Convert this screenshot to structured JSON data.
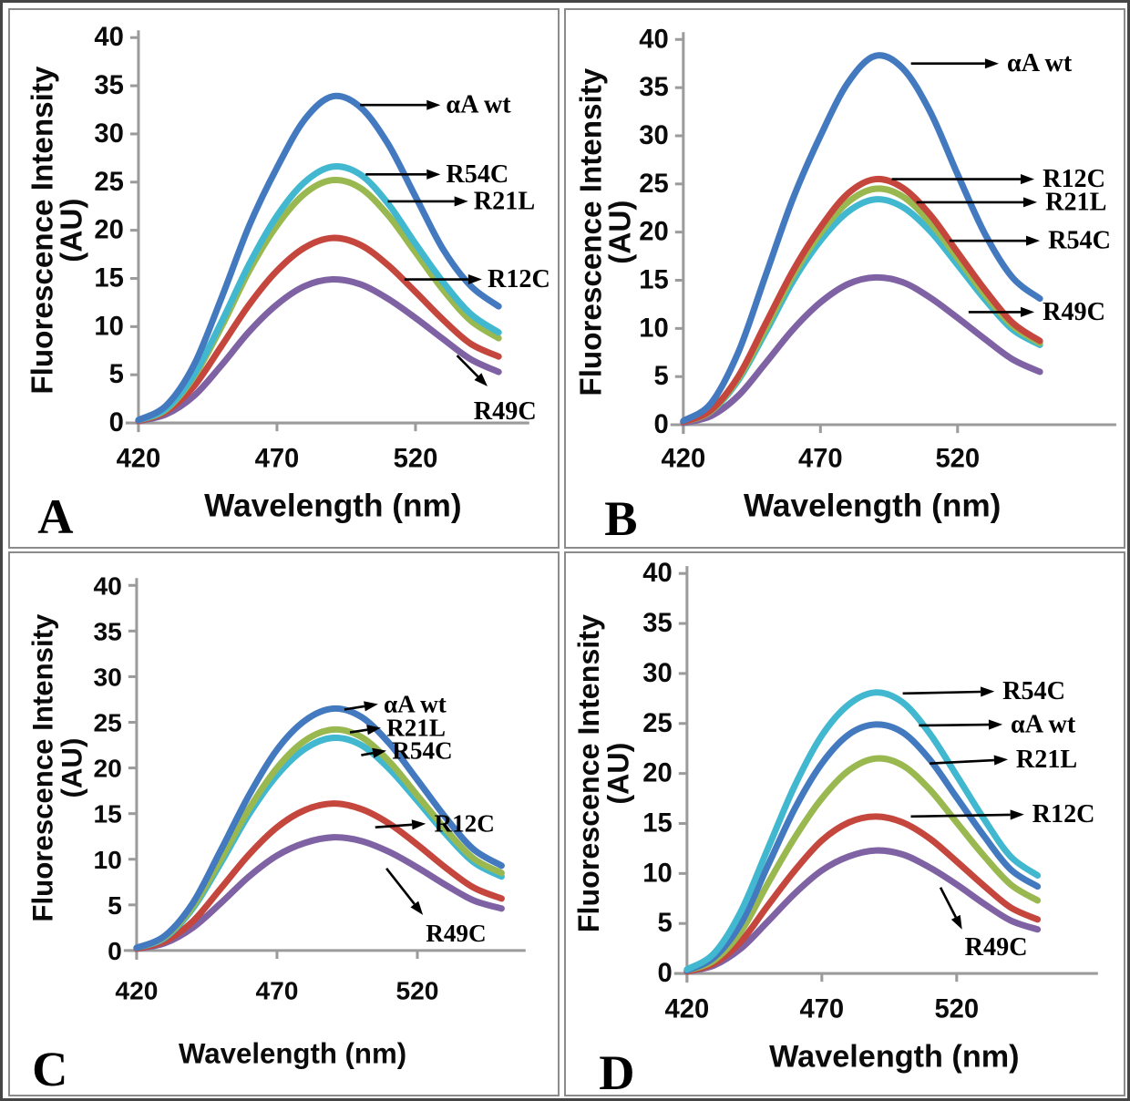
{
  "figure": {
    "description": "Four-panel fluorescence spectra figure comparing alphaA-crystallin wild type and mutants",
    "panel_letters": [
      "A",
      "B",
      "C",
      "D"
    ],
    "colors": {
      "aA_wt": "#4379bf",
      "R54C": "#41b8cf",
      "R21L": "#99b950",
      "R12C": "#c5463d",
      "R49C": "#7e62a4",
      "axis": "#9b9b9b",
      "arrow": "#000000",
      "panel_border": "#8b8b8b",
      "outer_frame": "#454545"
    }
  },
  "chart_data": {
    "type": "line",
    "xlabel": "Wavelength (nm)",
    "ylabel_line1": "Fluorescence Intensity",
    "ylabel_line2": "(AU)",
    "x_ticks": [
      420,
      470,
      520
    ],
    "y_ticks": [
      0,
      5,
      10,
      15,
      20,
      25,
      30,
      35,
      40
    ],
    "xlim": [
      415,
      560
    ],
    "ylim": [
      0,
      40
    ],
    "grid": false,
    "legend": "arrow-annotations",
    "x_nm": [
      420,
      430,
      440,
      450,
      460,
      470,
      480,
      490,
      500,
      510,
      520,
      530,
      540,
      550
    ],
    "panels": [
      {
        "letter": "A",
        "series": [
          {
            "name": "R49C",
            "color": "R49C",
            "values": [
              0.2,
              0.9,
              2.8,
              6.0,
              9.5,
              12.3,
              14.2,
              14.9,
              14.4,
              12.9,
              10.9,
              8.7,
              6.6,
              5.3
            ]
          },
          {
            "name": "R12C",
            "color": "R12C",
            "values": [
              0.2,
              1.2,
              3.8,
              8.0,
              12.3,
              15.8,
              18.2,
              19.2,
              18.5,
              16.4,
              13.6,
              10.7,
              8.2,
              6.9
            ]
          },
          {
            "name": "R21L",
            "color": "R21L",
            "values": [
              0.3,
              1.4,
              4.8,
              10.0,
              15.8,
              20.5,
              23.8,
              25.2,
              24.4,
              21.6,
              17.7,
              13.8,
              10.6,
              8.8
            ]
          },
          {
            "name": "R54C",
            "color": "R54C",
            "values": [
              0.3,
              1.5,
              5.0,
              10.5,
              16.5,
              21.5,
              25.0,
              26.6,
              25.8,
              22.8,
              18.6,
              14.6,
              11.3,
              9.4
            ]
          },
          {
            "name": "αA wt",
            "color": "aA_wt",
            "values": [
              0.3,
              1.8,
              6.0,
              13.0,
              20.5,
              26.5,
              31.5,
              33.9,
              32.8,
              29.0,
              23.5,
              18.0,
              14.2,
              12.1
            ]
          }
        ],
        "annotations": [
          {
            "label": "αA wt",
            "arrow": [
              500,
              33.0,
              529,
              33.0
            ],
            "text": [
              531,
              33.0
            ]
          },
          {
            "label": "R54C",
            "arrow": [
              502,
              25.8,
              529,
              25.8
            ],
            "text": [
              531,
              25.8
            ]
          },
          {
            "label": "R21L",
            "arrow": [
              510,
              23.0,
              539,
              23.0
            ],
            "text": [
              541,
              23.0
            ]
          },
          {
            "label": "R12C",
            "arrow": [
              516,
              14.9,
              544,
              14.9
            ],
            "text": [
              546,
              14.9
            ]
          },
          {
            "label": "R49C",
            "arrow": [
              535,
              7.0,
              546,
              3.8
            ],
            "text": [
              541,
              1.2
            ]
          }
        ]
      },
      {
        "letter": "B",
        "series": [
          {
            "name": "R49C",
            "color": "R49C",
            "values": [
              0.2,
              0.9,
              3.0,
              6.4,
              9.9,
              12.7,
              14.6,
              15.3,
              14.8,
              13.2,
              11.1,
              8.9,
              6.8,
              5.5
            ]
          },
          {
            "name": "R54C",
            "color": "R54C",
            "values": [
              0.3,
              1.4,
              4.6,
              9.6,
              14.9,
              19.1,
              22.1,
              23.4,
              22.6,
              20.1,
              16.6,
              13.0,
              9.9,
              8.3
            ]
          },
          {
            "name": "R21L",
            "color": "R21L",
            "values": [
              0.3,
              1.4,
              4.8,
              10.0,
              15.5,
              19.9,
              23.1,
              24.5,
              23.7,
              21.0,
              17.3,
              13.5,
              10.3,
              8.5
            ]
          },
          {
            "name": "R12C",
            "color": "R12C",
            "values": [
              0.3,
              1.5,
              5.0,
              10.5,
              16.0,
              20.5,
              24.0,
              25.5,
              24.6,
              21.8,
              17.9,
              14.0,
              10.6,
              8.7
            ]
          },
          {
            "name": "αA wt",
            "color": "aA_wt",
            "values": [
              0.4,
              2.2,
              7.5,
              15.5,
              23.5,
              30.0,
              35.5,
              38.3,
              37.0,
              32.5,
              26.0,
              19.8,
              15.3,
              13.1
            ]
          }
        ],
        "annotations": [
          {
            "label": "αA wt",
            "arrow": [
              503,
              37.5,
              535,
              37.5
            ],
            "text": [
              538,
              37.5
            ]
          },
          {
            "label": "R12C",
            "arrow": [
              496,
              25.5,
              548,
              25.5
            ],
            "text": [
              551,
              25.5
            ]
          },
          {
            "label": "R21L",
            "arrow": [
              505,
              23.1,
              549,
              23.1
            ],
            "text": [
              552,
              23.1
            ]
          },
          {
            "label": "R54C",
            "arrow": [
              517,
              19.1,
              550,
              19.1
            ],
            "text": [
              553,
              19.1
            ]
          },
          {
            "label": "R49C",
            "arrow": [
              524,
              11.7,
              548,
              11.7
            ],
            "text": [
              551,
              11.7
            ]
          }
        ]
      },
      {
        "letter": "C",
        "series": [
          {
            "name": "R49C",
            "color": "R49C",
            "values": [
              0.2,
              0.8,
              2.5,
              5.2,
              8.1,
              10.4,
              11.8,
              12.4,
              12.0,
              10.8,
              9.1,
              7.2,
              5.5,
              4.6
            ]
          },
          {
            "name": "R12C",
            "color": "R12C",
            "values": [
              0.2,
              1.0,
              3.2,
              6.8,
              10.5,
              13.5,
              15.4,
              16.1,
              15.5,
              13.9,
              11.6,
              9.1,
              6.9,
              5.7
            ]
          },
          {
            "name": "R54C",
            "color": "R54C",
            "values": [
              0.3,
              1.4,
              4.6,
              9.6,
              14.9,
              19.2,
              22.1,
              23.3,
              22.5,
              19.9,
              16.4,
              12.8,
              9.7,
              8.1
            ]
          },
          {
            "name": "R21L",
            "color": "R21L",
            "values": [
              0.3,
              1.5,
              4.8,
              10.0,
              15.5,
              20.0,
              23.0,
              24.2,
              23.4,
              20.7,
              17.0,
              13.3,
              10.1,
              8.5
            ]
          },
          {
            "name": "αA wt",
            "color": "aA_wt",
            "values": [
              0.3,
              1.6,
              5.2,
              11.0,
              17.0,
              22.0,
              25.2,
              26.5,
              25.6,
              22.7,
              18.7,
              14.6,
              11.1,
              9.3
            ]
          }
        ],
        "annotations": [
          {
            "label": "αA wt",
            "arrow": [
              494,
              26.4,
              506,
              27.0
            ],
            "text": [
              508,
              27.0
            ]
          },
          {
            "label": "R21L",
            "arrow": [
              496,
              23.9,
              507,
              24.4
            ],
            "text": [
              509,
              24.4
            ]
          },
          {
            "label": "R54C",
            "arrow": [
              500,
              21.4,
              509,
              21.9
            ],
            "text": [
              511,
              21.9
            ]
          },
          {
            "label": "R12C",
            "arrow": [
              505,
              13.5,
              523,
              13.9
            ],
            "text": [
              526,
              13.9
            ]
          },
          {
            "label": "R49C",
            "arrow": [
              509,
              9.0,
              522,
              3.9
            ],
            "text": [
              523,
              1.9
            ]
          }
        ]
      },
      {
        "letter": "D",
        "series": [
          {
            "name": "R49C",
            "color": "R49C",
            "values": [
              0.2,
              0.8,
              2.5,
              5.2,
              8.0,
              10.3,
              11.7,
              12.3,
              11.9,
              10.6,
              8.9,
              7.0,
              5.3,
              4.4
            ]
          },
          {
            "name": "R12C",
            "color": "R12C",
            "values": [
              0.2,
              1.0,
              3.2,
              6.8,
              10.3,
              13.3,
              15.1,
              15.7,
              15.1,
              13.5,
              11.2,
              8.8,
              6.6,
              5.4
            ]
          },
          {
            "name": "R21L",
            "color": "R21L",
            "values": [
              0.3,
              1.3,
              4.2,
              9.0,
              13.6,
              17.5,
              20.3,
              21.5,
              20.8,
              18.4,
              15.1,
              11.8,
              8.9,
              7.3
            ]
          },
          {
            "name": "αA wt",
            "color": "aA_wt",
            "values": [
              0.3,
              1.6,
              5.0,
              10.8,
              16.5,
              21.0,
              23.9,
              24.9,
              24.1,
              21.4,
              17.6,
              13.8,
              10.4,
              8.7
            ]
          },
          {
            "name": "R54C",
            "color": "R54C",
            "values": [
              0.4,
              2.0,
              6.2,
              12.5,
              18.8,
              23.8,
              26.9,
              28.1,
              27.1,
              24.0,
              19.8,
              15.5,
              11.7,
              9.8
            ]
          }
        ],
        "annotations": [
          {
            "label": "R54C",
            "arrow": [
              500,
              28.0,
              534,
              28.2
            ],
            "text": [
              537,
              28.2
            ]
          },
          {
            "label": "αA wt",
            "arrow": [
              506,
              24.8,
              537,
              24.9
            ],
            "text": [
              540,
              24.9
            ]
          },
          {
            "label": "R21L",
            "arrow": [
              510,
              21.0,
              539,
              21.4
            ],
            "text": [
              542,
              21.4
            ]
          },
          {
            "label": "R12C",
            "arrow": [
              503,
              15.7,
              545,
              15.9
            ],
            "text": [
              548,
              15.9
            ]
          },
          {
            "label": "R49C",
            "arrow": [
              514,
              8.6,
              522,
              4.4
            ],
            "text": [
              523,
              2.6
            ]
          }
        ]
      }
    ]
  }
}
